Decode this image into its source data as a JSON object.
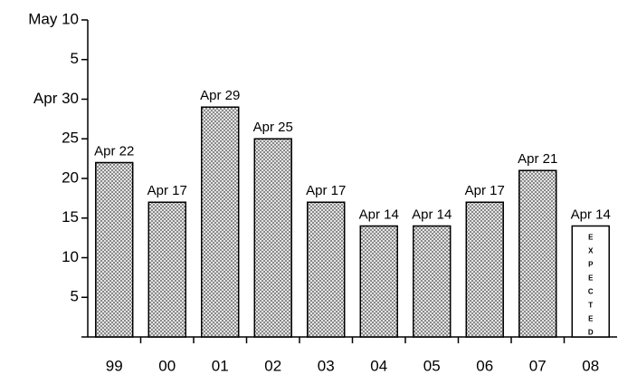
{
  "chart_data": {
    "type": "bar",
    "categories": [
      "99",
      "00",
      "01",
      "02",
      "03",
      "04",
      "05",
      "06",
      "07",
      "08"
    ],
    "values": [
      22,
      17,
      29,
      25,
      17,
      14,
      14,
      17,
      21,
      14
    ],
    "value_labels": [
      "Apr 22",
      "Apr 17",
      "Apr 29",
      "Apr 25",
      "Apr 17",
      "Apr 14",
      "Apr 14",
      "Apr 17",
      "Apr 21",
      "Apr 14"
    ],
    "color": "#9a9a9a",
    "ylim": [
      0,
      40
    ],
    "yticks": [
      {
        "value": 40,
        "label": "May 10"
      },
      {
        "value": 35,
        "label": "5"
      },
      {
        "value": 30,
        "label": "Apr 30"
      },
      25,
      20,
      15,
      10,
      5
    ],
    "annotation": {
      "text": "EXPECTED",
      "index": 9
    },
    "grid": false
  }
}
